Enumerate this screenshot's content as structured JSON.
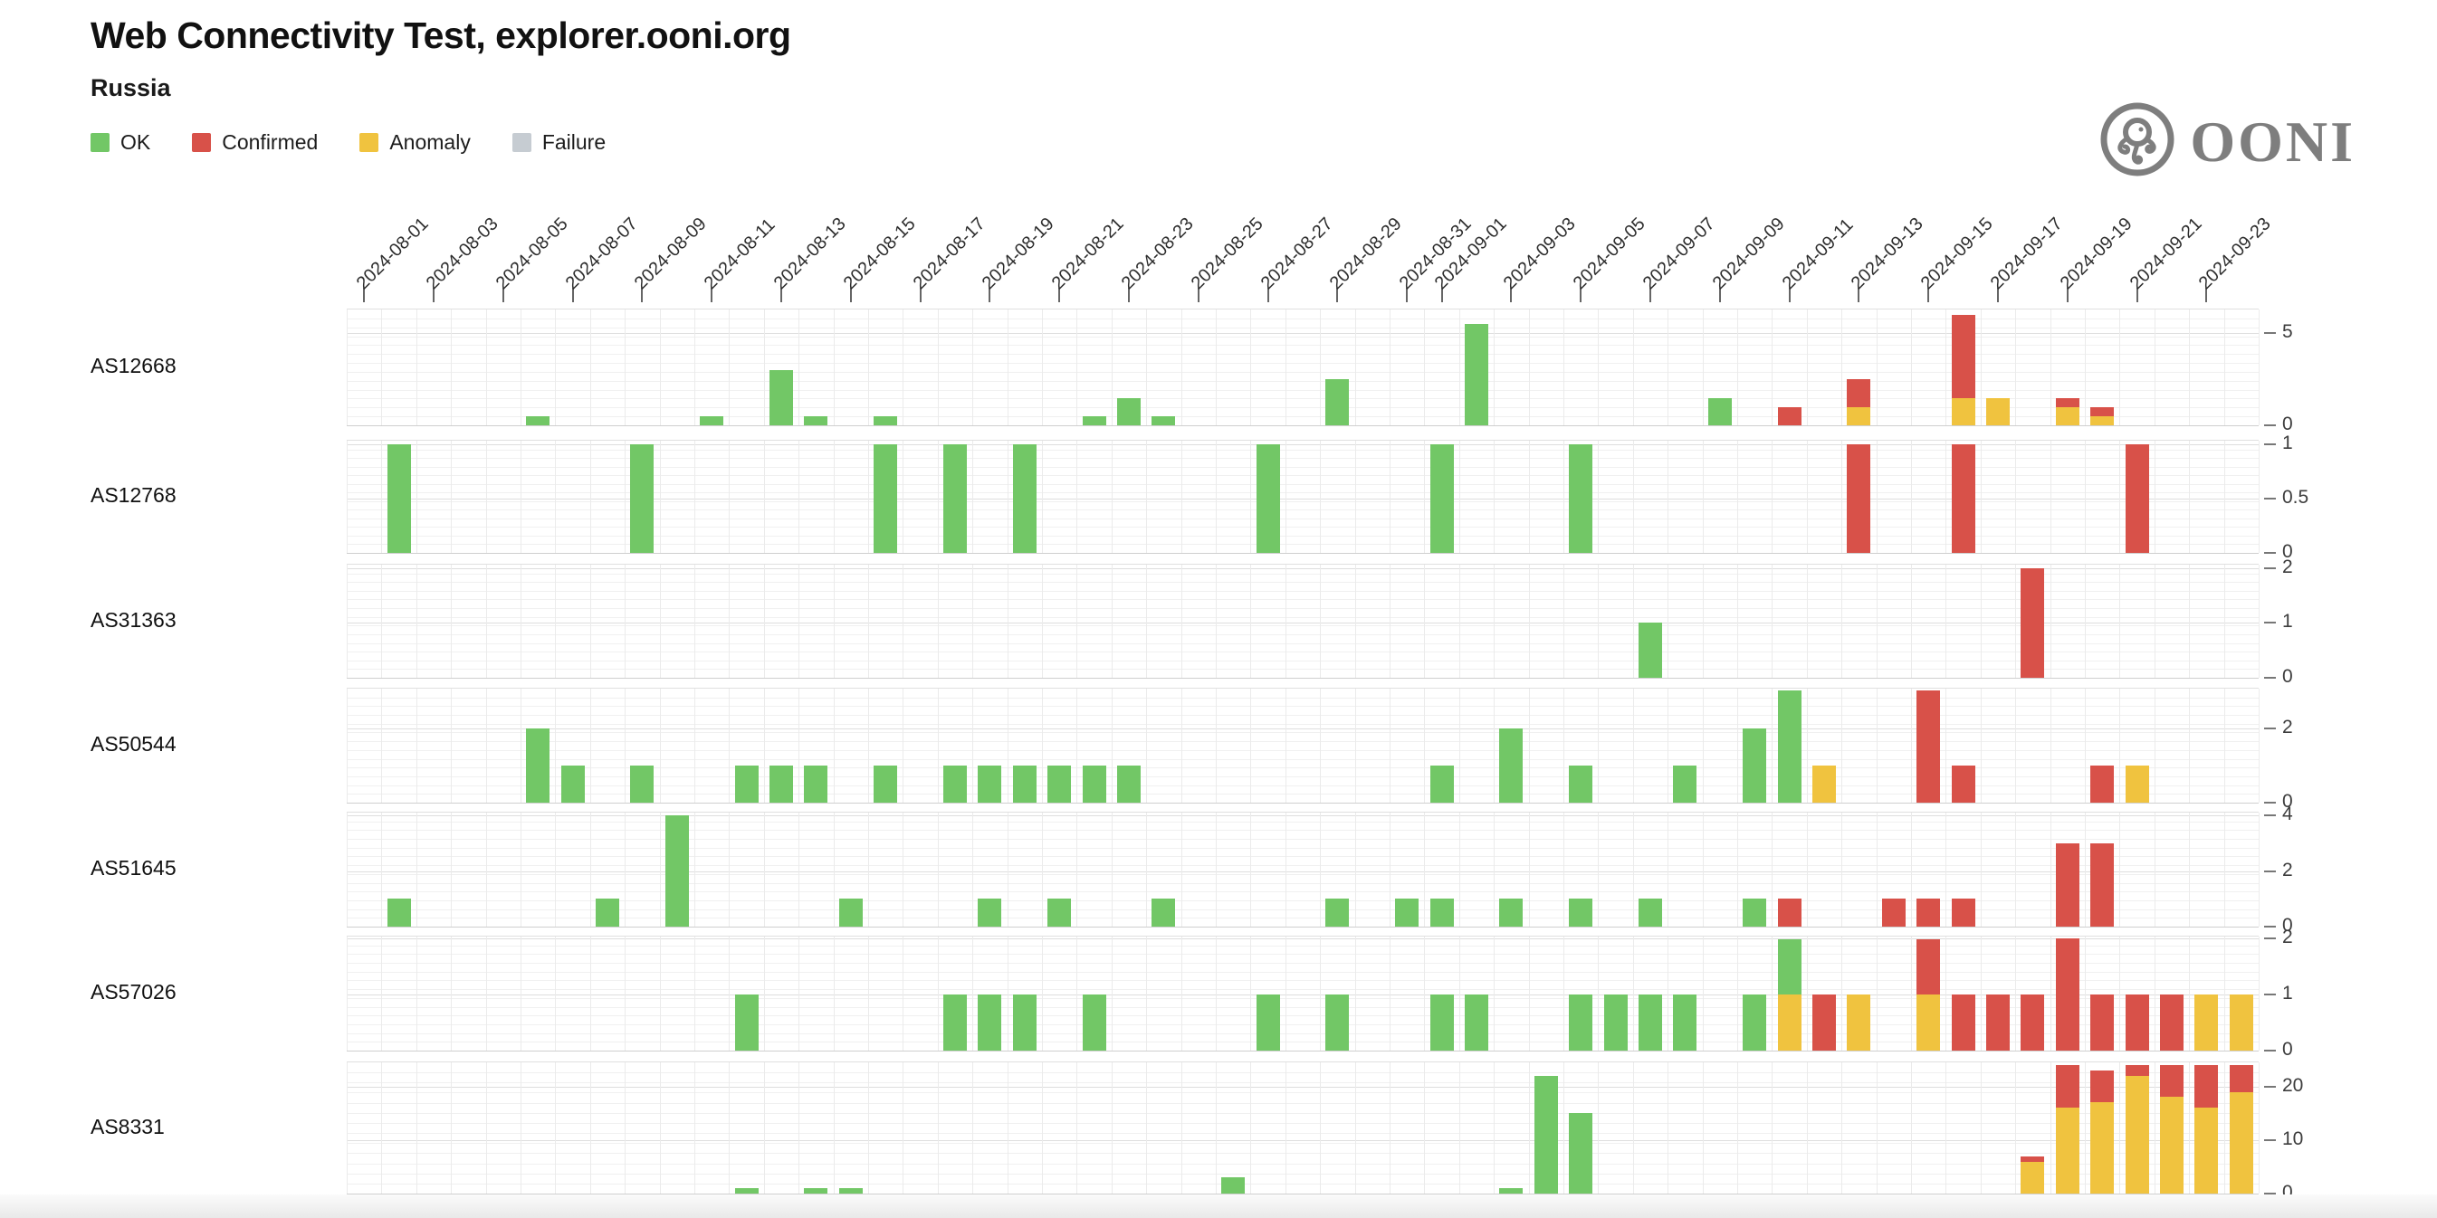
{
  "header": {
    "title": "Web Connectivity Test, explorer.ooni.org",
    "subtitle": "Russia"
  },
  "legend": [
    {
      "key": "ok",
      "label": "OK",
      "color": "#72C766"
    },
    {
      "key": "confirmed",
      "label": "Confirmed",
      "color": "#D85149"
    },
    {
      "key": "anomaly",
      "label": "Anomaly",
      "color": "#F0C33F"
    },
    {
      "key": "failure",
      "label": "Failure",
      "color": "#C6CCD2"
    }
  ],
  "logo": {
    "text": "OONI"
  },
  "chart_data": {
    "type": "bar",
    "stacked": true,
    "x_start": "2024-08-01",
    "x_end": "2024-09-24",
    "num_days": 55,
    "grid": true,
    "legend_position": "top-left",
    "stack_order_bottom_to_top": [
      "anomaly",
      "confirmed",
      "ok"
    ],
    "x_tick_labels": [
      "2024-08-01",
      "2024-08-03",
      "2024-08-05",
      "2024-08-07",
      "2024-08-09",
      "2024-08-11",
      "2024-08-13",
      "2024-08-15",
      "2024-08-17",
      "2024-08-19",
      "2024-08-21",
      "2024-08-23",
      "2024-08-25",
      "2024-08-27",
      "2024-08-29",
      "2024-08-31",
      "2024-09-01",
      "2024-09-03",
      "2024-09-05",
      "2024-09-07",
      "2024-09-09",
      "2024-09-11",
      "2024-09-13",
      "2024-09-15",
      "2024-09-17",
      "2024-09-19",
      "2024-09-21",
      "2024-09-23"
    ],
    "rows": [
      {
        "label": "AS12668",
        "ymax": 6.3,
        "yticks": [
          0,
          5
        ],
        "bars": [
          {
            "date": "2024-08-06",
            "ok": 0.5
          },
          {
            "date": "2024-08-11",
            "ok": 0.5
          },
          {
            "date": "2024-08-13",
            "ok": 3
          },
          {
            "date": "2024-08-14",
            "ok": 0.5
          },
          {
            "date": "2024-08-16",
            "ok": 0.5
          },
          {
            "date": "2024-08-22",
            "ok": 0.5
          },
          {
            "date": "2024-08-23",
            "ok": 1.5
          },
          {
            "date": "2024-08-24",
            "ok": 0.5
          },
          {
            "date": "2024-08-29",
            "ok": 2.5
          },
          {
            "date": "2024-09-02",
            "ok": 5.5
          },
          {
            "date": "2024-09-09",
            "ok": 1.5
          },
          {
            "date": "2024-09-11",
            "confirmed": 1
          },
          {
            "date": "2024-09-13",
            "anomaly": 1,
            "confirmed": 1.5
          },
          {
            "date": "2024-09-16",
            "anomaly": 1.5,
            "confirmed": 4.5
          },
          {
            "date": "2024-09-17",
            "anomaly": 1.5
          },
          {
            "date": "2024-09-19",
            "anomaly": 1,
            "confirmed": 0.5
          },
          {
            "date": "2024-09-20",
            "anomaly": 0.5,
            "confirmed": 0.5
          }
        ]
      },
      {
        "label": "AS12768",
        "ymax": 1.03,
        "yticks": [
          0,
          0.5,
          1
        ],
        "bars": [
          {
            "date": "2024-08-02",
            "ok": 1
          },
          {
            "date": "2024-08-09",
            "ok": 1
          },
          {
            "date": "2024-08-16",
            "ok": 1
          },
          {
            "date": "2024-08-18",
            "ok": 1
          },
          {
            "date": "2024-08-20",
            "ok": 1
          },
          {
            "date": "2024-08-27",
            "ok": 1
          },
          {
            "date": "2024-09-01",
            "ok": 1
          },
          {
            "date": "2024-09-05",
            "ok": 1
          },
          {
            "date": "2024-09-13",
            "confirmed": 1
          },
          {
            "date": "2024-09-16",
            "confirmed": 1
          },
          {
            "date": "2024-09-21",
            "confirmed": 1
          }
        ]
      },
      {
        "label": "AS31363",
        "ymax": 2.06,
        "yticks": [
          0,
          1,
          2
        ],
        "bars": [
          {
            "date": "2024-09-07",
            "ok": 1
          },
          {
            "date": "2024-09-18",
            "confirmed": 2
          }
        ]
      },
      {
        "label": "AS50544",
        "ymax": 3.06,
        "yticks": [
          0,
          2
        ],
        "bars": [
          {
            "date": "2024-08-06",
            "ok": 2
          },
          {
            "date": "2024-08-07",
            "ok": 1
          },
          {
            "date": "2024-08-09",
            "ok": 1
          },
          {
            "date": "2024-08-12",
            "ok": 1
          },
          {
            "date": "2024-08-13",
            "ok": 1
          },
          {
            "date": "2024-08-14",
            "ok": 1
          },
          {
            "date": "2024-08-16",
            "ok": 1
          },
          {
            "date": "2024-08-18",
            "ok": 1
          },
          {
            "date": "2024-08-19",
            "ok": 1
          },
          {
            "date": "2024-08-20",
            "ok": 1
          },
          {
            "date": "2024-08-21",
            "ok": 1
          },
          {
            "date": "2024-08-22",
            "ok": 1
          },
          {
            "date": "2024-08-23",
            "ok": 1
          },
          {
            "date": "2024-09-01",
            "ok": 1
          },
          {
            "date": "2024-09-03",
            "ok": 2
          },
          {
            "date": "2024-09-05",
            "ok": 1
          },
          {
            "date": "2024-09-08",
            "ok": 1
          },
          {
            "date": "2024-09-10",
            "ok": 2
          },
          {
            "date": "2024-09-11",
            "ok": 3
          },
          {
            "date": "2024-09-12",
            "anomaly": 1
          },
          {
            "date": "2024-09-15",
            "confirmed": 3
          },
          {
            "date": "2024-09-16",
            "confirmed": 1
          },
          {
            "date": "2024-09-20",
            "confirmed": 1
          },
          {
            "date": "2024-09-21",
            "anomaly": 1
          }
        ]
      },
      {
        "label": "AS51645",
        "ymax": 4.1,
        "yticks": [
          0,
          2,
          4
        ],
        "bars": [
          {
            "date": "2024-08-02",
            "ok": 1
          },
          {
            "date": "2024-08-08",
            "ok": 1
          },
          {
            "date": "2024-08-10",
            "ok": 4
          },
          {
            "date": "2024-08-15",
            "ok": 1
          },
          {
            "date": "2024-08-19",
            "ok": 1
          },
          {
            "date": "2024-08-21",
            "ok": 1
          },
          {
            "date": "2024-08-24",
            "ok": 1
          },
          {
            "date": "2024-08-29",
            "ok": 1
          },
          {
            "date": "2024-08-31",
            "ok": 1
          },
          {
            "date": "2024-09-01",
            "ok": 1
          },
          {
            "date": "2024-09-03",
            "ok": 1
          },
          {
            "date": "2024-09-05",
            "ok": 1
          },
          {
            "date": "2024-09-07",
            "ok": 1
          },
          {
            "date": "2024-09-10",
            "ok": 1
          },
          {
            "date": "2024-09-11",
            "confirmed": 1
          },
          {
            "date": "2024-09-14",
            "confirmed": 1
          },
          {
            "date": "2024-09-15",
            "confirmed": 1
          },
          {
            "date": "2024-09-16",
            "confirmed": 1
          },
          {
            "date": "2024-09-19",
            "confirmed": 3
          },
          {
            "date": "2024-09-20",
            "confirmed": 3
          }
        ]
      },
      {
        "label": "AS57026",
        "ymax": 2.04,
        "yticks": [
          0,
          1,
          2
        ],
        "bars": [
          {
            "date": "2024-08-12",
            "ok": 1
          },
          {
            "date": "2024-08-18",
            "ok": 1
          },
          {
            "date": "2024-08-19",
            "ok": 1
          },
          {
            "date": "2024-08-20",
            "ok": 1
          },
          {
            "date": "2024-08-22",
            "ok": 1
          },
          {
            "date": "2024-08-27",
            "ok": 1
          },
          {
            "date": "2024-08-29",
            "ok": 1
          },
          {
            "date": "2024-09-01",
            "ok": 1
          },
          {
            "date": "2024-09-02",
            "ok": 1
          },
          {
            "date": "2024-09-05",
            "ok": 1
          },
          {
            "date": "2024-09-06",
            "ok": 1
          },
          {
            "date": "2024-09-07",
            "ok": 1
          },
          {
            "date": "2024-09-08",
            "ok": 1
          },
          {
            "date": "2024-09-10",
            "ok": 1
          },
          {
            "date": "2024-09-11",
            "anomaly": 1,
            "ok": 1
          },
          {
            "date": "2024-09-12",
            "confirmed": 1
          },
          {
            "date": "2024-09-13",
            "anomaly": 1
          },
          {
            "date": "2024-09-15",
            "anomaly": 1,
            "confirmed": 1
          },
          {
            "date": "2024-09-16",
            "confirmed": 1
          },
          {
            "date": "2024-09-17",
            "confirmed": 1
          },
          {
            "date": "2024-09-18",
            "confirmed": 1
          },
          {
            "date": "2024-09-19",
            "confirmed": 2
          },
          {
            "date": "2024-09-20",
            "confirmed": 1
          },
          {
            "date": "2024-09-21",
            "confirmed": 1
          },
          {
            "date": "2024-09-22",
            "confirmed": 1
          },
          {
            "date": "2024-09-23",
            "anomaly": 1
          },
          {
            "date": "2024-09-24",
            "anomaly": 1
          }
        ]
      },
      {
        "label": "AS8331",
        "ymax": 24.5,
        "yticks": [
          0,
          10,
          20
        ],
        "bars": [
          {
            "date": "2024-08-12",
            "ok": 1
          },
          {
            "date": "2024-08-14",
            "ok": 1
          },
          {
            "date": "2024-08-15",
            "ok": 1
          },
          {
            "date": "2024-08-26",
            "ok": 3
          },
          {
            "date": "2024-09-03",
            "ok": 1
          },
          {
            "date": "2024-09-04",
            "ok": 22
          },
          {
            "date": "2024-09-05",
            "ok": 15
          },
          {
            "date": "2024-09-18",
            "anomaly": 6,
            "confirmed": 1
          },
          {
            "date": "2024-09-19",
            "anomaly": 16,
            "confirmed": 8
          },
          {
            "date": "2024-09-20",
            "anomaly": 17,
            "confirmed": 6
          },
          {
            "date": "2024-09-21",
            "anomaly": 22,
            "confirmed": 2
          },
          {
            "date": "2024-09-22",
            "anomaly": 18,
            "confirmed": 6
          },
          {
            "date": "2024-09-23",
            "anomaly": 16,
            "confirmed": 8
          },
          {
            "date": "2024-09-24",
            "anomaly": 19,
            "confirmed": 5
          }
        ]
      }
    ]
  }
}
